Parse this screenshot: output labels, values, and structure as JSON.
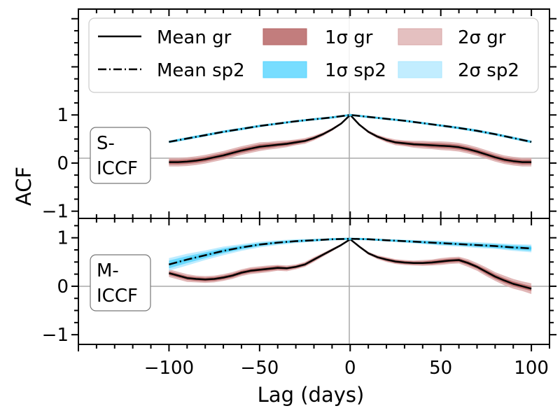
{
  "chart_data": {
    "type": "line",
    "xlabel": "Lag (days)",
    "ylabel": "ACF",
    "xlim": [
      -150,
      110
    ],
    "xticks": [
      -100,
      -50,
      0,
      50,
      100
    ],
    "xtick_labels": [
      "−100",
      "−50",
      "0",
      "50",
      "100"
    ],
    "legend": {
      "placement": "top",
      "entries": [
        {
          "label": "Mean gr",
          "kind": "solid-line",
          "color": "#000000"
        },
        {
          "label": "Mean sp2",
          "kind": "dashdot-line",
          "color": "#000000"
        },
        {
          "label": "1σ gr",
          "kind": "band",
          "color": "#b76666",
          "opacity": 0.85
        },
        {
          "label": "1σ sp2",
          "kind": "band",
          "color": "#55d4ff",
          "opacity": 0.8
        },
        {
          "label": "2σ gr",
          "kind": "band",
          "color": "#d9a5a5",
          "opacity": 0.7
        },
        {
          "label": "2σ sp2",
          "kind": "band",
          "color": "#a8e6ff",
          "opacity": 0.7
        }
      ]
    },
    "colors": {
      "gr_1sigma": "#b76666",
      "gr_2sigma": "#d9a5a5",
      "sp2_1sigma": "#55d4ff",
      "sp2_2sigma": "#a8e6ff",
      "mean_line": "#000000",
      "sp2_dash_underlay": "#3fc8f0",
      "reference_line": "#aaaaaa"
    },
    "panels": [
      {
        "id": "s-iccf",
        "label_line1": "S-",
        "label_line2": "ICCF",
        "ylim": [
          -1.15,
          3.2
        ],
        "yticks": [
          -1,
          0,
          1
        ],
        "ytick_labels": [
          "−1",
          "0",
          "1"
        ],
        "series": [
          {
            "name": "Mean gr",
            "x": [
              -100,
              -95,
              -90,
              -85,
              -80,
              -75,
              -70,
              -65,
              -60,
              -55,
              -50,
              -45,
              -40,
              -35,
              -30,
              -25,
              -20,
              -15,
              -10,
              -5,
              0,
              5,
              10,
              15,
              20,
              25,
              30,
              35,
              40,
              45,
              50,
              55,
              60,
              65,
              70,
              75,
              80,
              85,
              90,
              95,
              100
            ],
            "y": [
              0.02,
              0.02,
              0.03,
              0.05,
              0.08,
              0.12,
              0.16,
              0.21,
              0.26,
              0.3,
              0.34,
              0.36,
              0.38,
              0.4,
              0.43,
              0.46,
              0.52,
              0.6,
              0.7,
              0.82,
              1.0,
              0.8,
              0.65,
              0.55,
              0.48,
              0.43,
              0.41,
              0.39,
              0.38,
              0.37,
              0.36,
              0.35,
              0.33,
              0.29,
              0.24,
              0.18,
              0.12,
              0.07,
              0.04,
              0.02,
              0.02
            ],
            "band1": [
              0.05,
              0.05,
              0.05,
              0.05,
              0.05,
              0.05,
              0.05,
              0.05,
              0.05,
              0.05,
              0.05,
              0.05,
              0.04,
              0.04,
              0.04,
              0.03,
              0.03,
              0.02,
              0.02,
              0.01,
              0.0,
              0.01,
              0.02,
              0.02,
              0.03,
              0.03,
              0.04,
              0.04,
              0.04,
              0.05,
              0.05,
              0.05,
              0.05,
              0.05,
              0.05,
              0.05,
              0.05,
              0.05,
              0.05,
              0.05,
              0.05
            ],
            "band2": [
              0.09,
              0.09,
              0.09,
              0.09,
              0.09,
              0.09,
              0.09,
              0.09,
              0.09,
              0.09,
              0.09,
              0.08,
              0.08,
              0.07,
              0.06,
              0.06,
              0.05,
              0.04,
              0.03,
              0.02,
              0.0,
              0.02,
              0.03,
              0.04,
              0.05,
              0.06,
              0.06,
              0.07,
              0.08,
              0.08,
              0.09,
              0.09,
              0.09,
              0.09,
              0.09,
              0.09,
              0.09,
              0.09,
              0.09,
              0.09,
              0.09
            ]
          },
          {
            "name": "Mean sp2",
            "x": [
              -100,
              -90,
              -80,
              -70,
              -60,
              -50,
              -40,
              -30,
              -20,
              -10,
              0,
              10,
              20,
              30,
              40,
              50,
              60,
              70,
              80,
              90,
              100
            ],
            "y": [
              0.44,
              0.51,
              0.58,
              0.65,
              0.71,
              0.77,
              0.82,
              0.87,
              0.91,
              0.95,
              1.0,
              0.96,
              0.92,
              0.88,
              0.83,
              0.78,
              0.73,
              0.67,
              0.6,
              0.52,
              0.44
            ],
            "band1": [
              0.02,
              0.02,
              0.02,
              0.02,
              0.02,
              0.015,
              0.015,
              0.01,
              0.01,
              0.005,
              0.0,
              0.005,
              0.01,
              0.01,
              0.015,
              0.015,
              0.02,
              0.02,
              0.02,
              0.02,
              0.02
            ],
            "band2": [
              0.03,
              0.03,
              0.03,
              0.03,
              0.03,
              0.025,
              0.02,
              0.02,
              0.015,
              0.01,
              0.0,
              0.01,
              0.015,
              0.02,
              0.02,
              0.025,
              0.03,
              0.03,
              0.03,
              0.03,
              0.03
            ]
          }
        ]
      },
      {
        "id": "m-iccf",
        "label_line1": "M-",
        "label_line2": "ICCF",
        "ylim": [
          -1.2,
          1.4
        ],
        "yticks": [
          -1,
          0,
          1
        ],
        "ytick_labels": [
          "−1",
          "0",
          "1"
        ],
        "series": [
          {
            "name": "Mean gr",
            "x": [
              -100,
              -95,
              -90,
              -85,
              -80,
              -75,
              -70,
              -65,
              -60,
              -55,
              -50,
              -45,
              -40,
              -35,
              -30,
              -25,
              -20,
              -15,
              -10,
              -5,
              0,
              5,
              10,
              15,
              20,
              25,
              30,
              35,
              40,
              45,
              50,
              55,
              60,
              65,
              70,
              75,
              80,
              85,
              90,
              95,
              100
            ],
            "y": [
              0.27,
              0.22,
              0.17,
              0.15,
              0.14,
              0.15,
              0.18,
              0.22,
              0.28,
              0.32,
              0.34,
              0.36,
              0.38,
              0.37,
              0.4,
              0.45,
              0.55,
              0.65,
              0.75,
              0.85,
              0.97,
              0.82,
              0.68,
              0.6,
              0.55,
              0.51,
              0.49,
              0.48,
              0.48,
              0.49,
              0.51,
              0.53,
              0.54,
              0.48,
              0.4,
              0.3,
              0.2,
              0.12,
              0.05,
              0.0,
              -0.05
            ],
            "band1": [
              0.04,
              0.04,
              0.04,
              0.04,
              0.04,
              0.04,
              0.04,
              0.04,
              0.04,
              0.04,
              0.04,
              0.04,
              0.04,
              0.03,
              0.03,
              0.03,
              0.03,
              0.02,
              0.02,
              0.02,
              0.0,
              0.02,
              0.02,
              0.02,
              0.03,
              0.03,
              0.03,
              0.03,
              0.03,
              0.04,
              0.04,
              0.04,
              0.04,
              0.04,
              0.04,
              0.05,
              0.05,
              0.05,
              0.05,
              0.05,
              0.05
            ],
            "band2": [
              0.08,
              0.08,
              0.08,
              0.07,
              0.07,
              0.07,
              0.07,
              0.07,
              0.07,
              0.07,
              0.07,
              0.07,
              0.06,
              0.06,
              0.05,
              0.05,
              0.05,
              0.04,
              0.03,
              0.02,
              0.0,
              0.02,
              0.03,
              0.04,
              0.05,
              0.05,
              0.05,
              0.05,
              0.06,
              0.06,
              0.07,
              0.07,
              0.07,
              0.08,
              0.08,
              0.09,
              0.09,
              0.1,
              0.1,
              0.1,
              0.11
            ]
          },
          {
            "name": "Mean sp2",
            "x": [
              -100,
              -90,
              -80,
              -70,
              -60,
              -50,
              -40,
              -30,
              -20,
              -10,
              0,
              10,
              20,
              30,
              40,
              50,
              60,
              70,
              80,
              90,
              100
            ],
            "y": [
              0.45,
              0.55,
              0.64,
              0.73,
              0.8,
              0.86,
              0.9,
              0.93,
              0.95,
              0.97,
              0.98,
              0.97,
              0.95,
              0.93,
              0.91,
              0.89,
              0.87,
              0.85,
              0.83,
              0.8,
              0.78
            ],
            "band1": [
              0.08,
              0.07,
              0.06,
              0.05,
              0.04,
              0.03,
              0.025,
              0.02,
              0.015,
              0.01,
              0.0,
              0.01,
              0.015,
              0.02,
              0.025,
              0.03,
              0.03,
              0.035,
              0.04,
              0.045,
              0.05
            ],
            "band2": [
              0.13,
              0.12,
              0.1,
              0.09,
              0.07,
              0.06,
              0.05,
              0.04,
              0.03,
              0.015,
              0.0,
              0.015,
              0.02,
              0.03,
              0.04,
              0.05,
              0.05,
              0.06,
              0.06,
              0.07,
              0.08
            ]
          }
        ]
      }
    ]
  }
}
